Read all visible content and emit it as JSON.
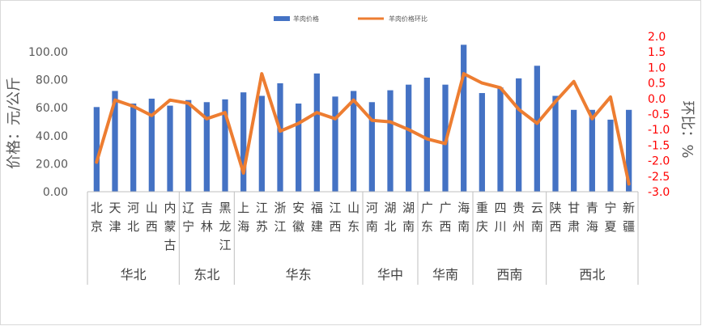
{
  "chart_data": {
    "type": "bar",
    "categories": [
      "北京",
      "天津",
      "河北",
      "山西",
      "内蒙古",
      "辽宁",
      "吉林",
      "黑龙江",
      "上海",
      "江苏",
      "浙江",
      "安徽",
      "福建",
      "江西",
      "山东",
      "河南",
      "湖北",
      "湖南",
      "广东",
      "广西",
      "海南",
      "重庆",
      "四川",
      "贵州",
      "云南",
      "陕西",
      "甘肃",
      "青海",
      "宁夏",
      "新疆"
    ],
    "regions": [
      {
        "name": "华北",
        "count": 5
      },
      {
        "name": "东北",
        "count": 3
      },
      {
        "name": "华东",
        "count": 7
      },
      {
        "name": "华中",
        "count": 3
      },
      {
        "name": "华南",
        "count": 3
      },
      {
        "name": "西南",
        "count": 4
      },
      {
        "name": "西北",
        "count": 5
      }
    ],
    "series": [
      {
        "name": "羊肉价格",
        "type": "bar",
        "axis": "left",
        "color": "#4472c4",
        "values": [
          60.5,
          72.0,
          63.0,
          66.5,
          61.5,
          65.5,
          64.0,
          66.0,
          71.0,
          68.5,
          77.5,
          63.0,
          84.5,
          68.0,
          72.0,
          64.0,
          72.5,
          76.5,
          81.5,
          76.5,
          105.0,
          70.5,
          74.5,
          81.0,
          90.0,
          68.5,
          58.5,
          58.5,
          51.5,
          58.5
        ]
      },
      {
        "name": "羊肉价格环比",
        "type": "line",
        "axis": "right",
        "color": "#ed7d31",
        "values": [
          -2.05,
          -0.05,
          -0.25,
          -0.55,
          -0.05,
          -0.15,
          -0.65,
          -0.45,
          -2.4,
          0.8,
          -1.05,
          -0.8,
          -0.45,
          -0.65,
          -0.05,
          -0.7,
          -0.75,
          -1.0,
          -1.3,
          -1.45,
          0.8,
          0.5,
          0.35,
          -0.35,
          -0.8,
          -0.1,
          0.55,
          -0.65,
          0.05,
          -2.75
        ]
      }
    ],
    "ylabel": "价格：元/公斤",
    "ylabel_right": "环比：%",
    "ylim": [
      0,
      100
    ],
    "y_ticks": [
      "0.00",
      "20.00",
      "40.00",
      "60.00",
      "80.00",
      "100.00"
    ],
    "ylim_right": [
      -3.0,
      2.0
    ],
    "y_ticks_right": [
      "2.0",
      "1.5",
      "1.0",
      "0.5",
      "0.0",
      "-0.5",
      "-1.0",
      "-1.5",
      "-2.0",
      "-2.5",
      "-3.0"
    ],
    "legend_position": "top",
    "grid": false
  }
}
